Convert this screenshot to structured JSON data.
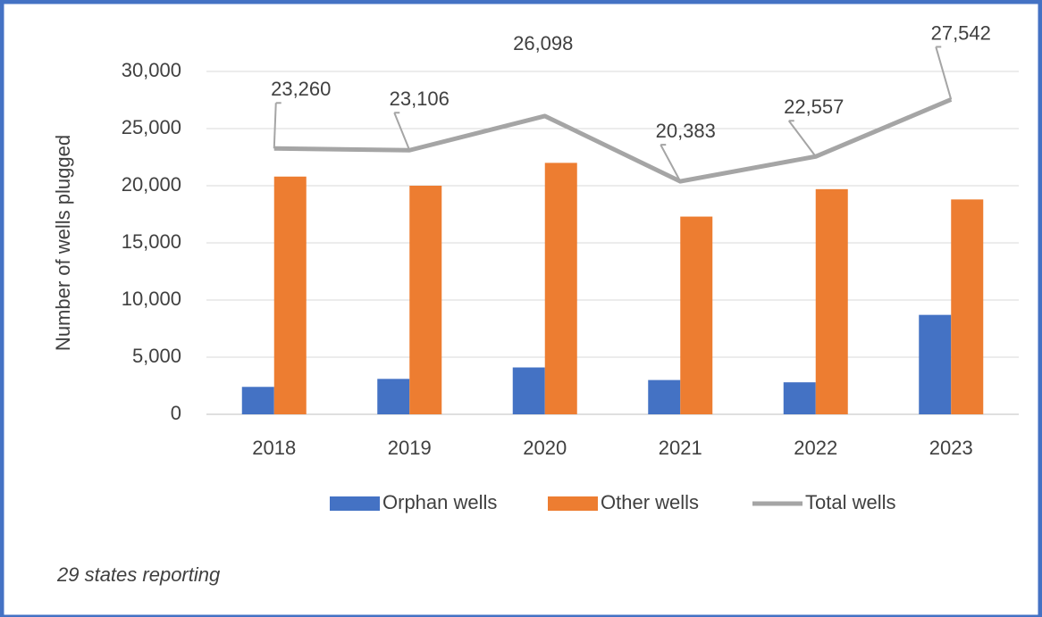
{
  "chart_data": {
    "type": "bar",
    "categories": [
      "2018",
      "2019",
      "2020",
      "2021",
      "2022",
      "2023"
    ],
    "y_label": "Number of wells plugged",
    "series": [
      {
        "name": "Orphan wells",
        "type": "bar",
        "color": "#4472c4",
        "values": [
          2400,
          3100,
          4100,
          3000,
          2800,
          8700
        ]
      },
      {
        "name": "Other wells",
        "type": "bar",
        "color": "#ed7d31",
        "values": [
          20800,
          20000,
          22000,
          17300,
          19700,
          18800
        ]
      },
      {
        "name": "Total wells",
        "type": "line",
        "color": "#a5a5a5",
        "values": [
          23260,
          23106,
          26098,
          20383,
          22557,
          27542
        ],
        "value_labels": [
          "23,260",
          "23,106",
          "26,098",
          "20,383",
          "22,557",
          "27,542"
        ]
      }
    ],
    "ylim": [
      0,
      30000
    ],
    "yticks": [
      0,
      {
        "value": 5000,
        "label": "5,000"
      },
      {
        "value": 10000,
        "label": "10,000"
      },
      {
        "value": 15000,
        "label": "15,000"
      },
      {
        "value": 20000,
        "label": "20,000"
      },
      {
        "value": 25000,
        "label": "25,000"
      },
      {
        "value": 30000,
        "label": "30,000"
      }
    ],
    "grid": true,
    "legend": "bottom",
    "note": "29 states reporting"
  }
}
